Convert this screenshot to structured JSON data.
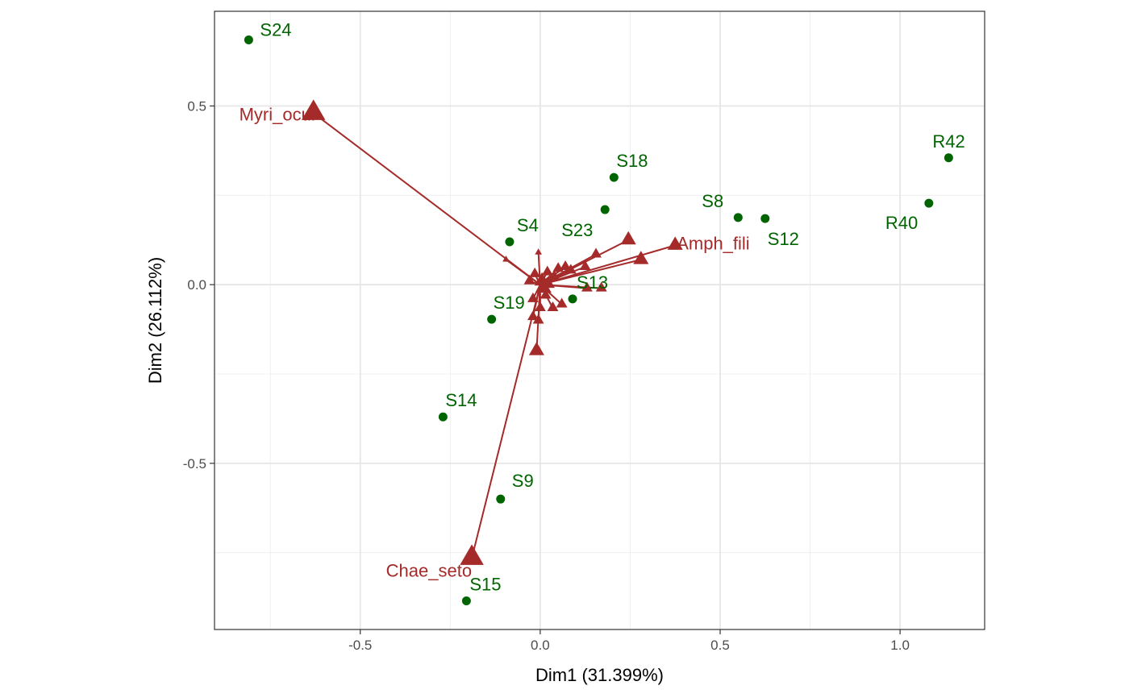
{
  "chart_data": {
    "type": "scatter",
    "title": "",
    "xlabel": "Dim1 (31.399%)",
    "ylabel": "Dim2 (26.112%)",
    "xlim": [
      -0.905,
      1.235
    ],
    "ylim": [
      -0.965,
      0.765
    ],
    "grid": true,
    "xticks": [
      {
        "value": -0.5,
        "label": "-0.5"
      },
      {
        "value": 0.0,
        "label": "0.0"
      },
      {
        "value": 0.5,
        "label": "0.5"
      },
      {
        "value": 1.0,
        "label": "1.0"
      }
    ],
    "yticks": [
      {
        "value": -0.5,
        "label": "-0.5"
      },
      {
        "value": 0.0,
        "label": "0.0"
      },
      {
        "value": 0.5,
        "label": "0.5"
      }
    ],
    "x_minor_grid": [
      -0.75,
      -0.25,
      0.25,
      0.75
    ],
    "y_minor_grid": [
      -0.75,
      -0.25,
      0.25
    ],
    "site_color": "#006400",
    "species_color": "#A52A2A",
    "sites": [
      {
        "label": "S24",
        "x": -0.81,
        "y": 0.685
      },
      {
        "label": "R42",
        "x": 1.135,
        "y": 0.355
      },
      {
        "label": "S18",
        "x": 0.205,
        "y": 0.3
      },
      {
        "label": "S8",
        "x": 0.55,
        "y": 0.188
      },
      {
        "label": "S12",
        "x": 0.625,
        "y": 0.185
      },
      {
        "label": "R40",
        "x": 1.08,
        "y": 0.228
      },
      {
        "label": "S23",
        "x": 0.18,
        "y": 0.21
      },
      {
        "label": "S4",
        "x": -0.085,
        "y": 0.12
      },
      {
        "label": "S13",
        "x": 0.09,
        "y": -0.04
      },
      {
        "label": "S19",
        "x": -0.135,
        "y": -0.097
      },
      {
        "label": "S14",
        "x": -0.27,
        "y": -0.37
      },
      {
        "label": "S9",
        "x": -0.11,
        "y": -0.6
      },
      {
        "label": "S15",
        "x": -0.205,
        "y": -0.885
      }
    ],
    "species": [
      {
        "label": "Myri_ocul",
        "x": -0.63,
        "y": 0.48,
        "size": "large"
      },
      {
        "label": "Chae_seto",
        "x": -0.19,
        "y": -0.765,
        "size": "large"
      },
      {
        "label": "Amph_fili",
        "x": 0.375,
        "y": 0.11,
        "size": "medium"
      },
      {
        "label": "",
        "x": 0.28,
        "y": 0.07,
        "size": "medium"
      },
      {
        "label": "",
        "x": 0.245,
        "y": 0.125,
        "size": "medium"
      },
      {
        "label": "",
        "x": -0.01,
        "y": -0.185,
        "size": "medium"
      },
      {
        "label": "",
        "x": 0.17,
        "y": -0.01,
        "size": "small"
      },
      {
        "label": "",
        "x": 0.155,
        "y": 0.085,
        "size": "small"
      },
      {
        "label": "",
        "x": 0.125,
        "y": 0.05,
        "size": "small"
      },
      {
        "label": "",
        "x": 0.13,
        "y": -0.01,
        "size": "small"
      },
      {
        "label": "",
        "x": 0.085,
        "y": 0.04,
        "size": "small"
      },
      {
        "label": "",
        "x": 0.07,
        "y": 0.05,
        "size": "small"
      },
      {
        "label": "",
        "x": 0.05,
        "y": 0.045,
        "size": "small"
      },
      {
        "label": "",
        "x": 0.04,
        "y": 0.02,
        "size": "small"
      },
      {
        "label": "",
        "x": 0.06,
        "y": -0.055,
        "size": "small"
      },
      {
        "label": "",
        "x": 0.035,
        "y": -0.065,
        "size": "small"
      },
      {
        "label": "",
        "x": 0.0,
        "y": -0.065,
        "size": "small"
      },
      {
        "label": "",
        "x": -0.005,
        "y": -0.1,
        "size": "small"
      },
      {
        "label": "",
        "x": -0.02,
        "y": -0.09,
        "size": "small"
      },
      {
        "label": "",
        "x": -0.005,
        "y": 0.09,
        "size": "tiny"
      },
      {
        "label": "",
        "x": -0.095,
        "y": 0.07,
        "size": "tiny"
      },
      {
        "label": "",
        "x": -0.03,
        "y": 0.01,
        "size": "small"
      },
      {
        "label": "",
        "x": -0.015,
        "y": 0.03,
        "size": "small"
      },
      {
        "label": "",
        "x": 0.02,
        "y": 0.035,
        "size": "small"
      },
      {
        "label": "",
        "x": 0.025,
        "y": 0.0,
        "size": "small"
      },
      {
        "label": "",
        "x": 0.015,
        "y": -0.03,
        "size": "small"
      },
      {
        "label": "",
        "x": -0.02,
        "y": -0.04,
        "size": "small"
      },
      {
        "label": "",
        "x": 0.005,
        "y": 0.01,
        "size": "medium"
      },
      {
        "label": "",
        "x": 0.01,
        "y": -0.01,
        "size": "medium"
      }
    ]
  }
}
